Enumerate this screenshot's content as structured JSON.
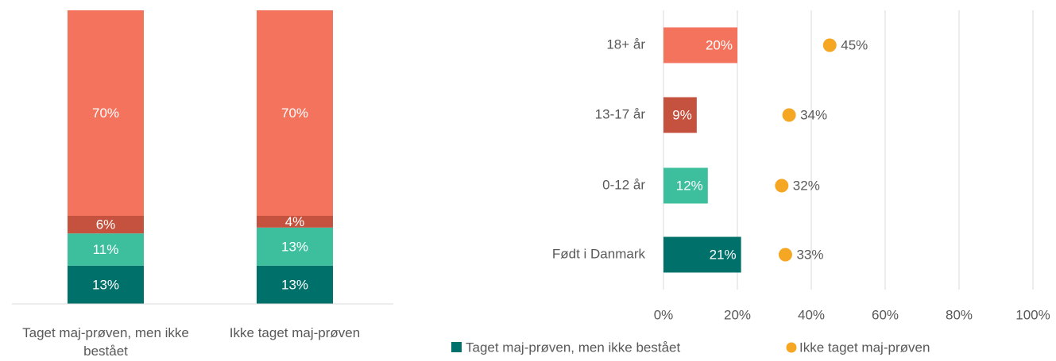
{
  "chart_data": [
    {
      "type": "stacked-bar",
      "categories": [
        "Taget maj-prøven, men ikke bestået",
        "Ikke taget maj-prøven"
      ],
      "ylim": [
        0,
        100
      ],
      "series": [
        {
          "color": "#00706a",
          "values": [
            13,
            13
          ],
          "value_labels": [
            "13%",
            "13%"
          ]
        },
        {
          "color": "#3dbf9d",
          "values": [
            11,
            13
          ],
          "value_labels": [
            "11%",
            "13%"
          ]
        },
        {
          "color": "#c5513f",
          "values": [
            6,
            4
          ],
          "value_labels": [
            "6%",
            "4%"
          ]
        },
        {
          "color": "#f4735d",
          "values": [
            70,
            70
          ],
          "value_labels": [
            "70%",
            "70%"
          ]
        }
      ]
    },
    {
      "type": "horizontal-bar-dot",
      "categories": [
        "18+ år",
        "13-17 år",
        "0-12 år",
        "Født i Danmark"
      ],
      "xlim": [
        0,
        100
      ],
      "xticks": [
        {
          "value": 0,
          "label": "0%"
        },
        {
          "value": 20,
          "label": "20%"
        },
        {
          "value": 40,
          "label": "40%"
        },
        {
          "value": 60,
          "label": "60%"
        },
        {
          "value": 80,
          "label": "80%"
        },
        {
          "value": 100,
          "label": "100%"
        }
      ],
      "grid": true,
      "legend": "bottom",
      "series": [
        {
          "name": "Taget maj-prøven, men ikke bestået",
          "mark": "bar",
          "color": "#00706a",
          "colors": [
            "#f4735d",
            "#c5513f",
            "#3dbf9d",
            "#00706a"
          ],
          "values": [
            20,
            9,
            12,
            21
          ],
          "value_labels": [
            "20%",
            "9%",
            "12%",
            "21%"
          ]
        },
        {
          "name": "Ikke taget maj-prøven",
          "mark": "dot",
          "color": "#f5a623",
          "values": [
            45,
            34,
            32,
            33
          ],
          "value_labels": [
            "45%",
            "34%",
            "32%",
            "33%"
          ]
        }
      ]
    }
  ]
}
